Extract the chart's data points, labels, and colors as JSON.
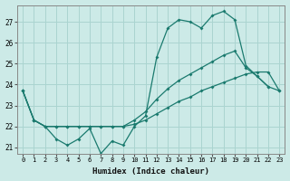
{
  "xlabel": "Humidex (Indice chaleur)",
  "background_color": "#cceae7",
  "grid_color": "#aad4d0",
  "line_color": "#1a7a6e",
  "x": [
    0,
    1,
    2,
    3,
    4,
    5,
    6,
    7,
    8,
    9,
    10,
    11,
    12,
    13,
    14,
    15,
    16,
    17,
    18,
    19,
    20,
    21,
    22,
    23
  ],
  "line1": [
    23.7,
    22.3,
    22.0,
    21.4,
    21.1,
    21.4,
    21.9,
    20.7,
    21.3,
    21.1,
    22.0,
    22.5,
    25.3,
    26.7,
    27.1,
    27.0,
    26.7,
    27.3,
    27.5,
    27.1,
    24.9,
    24.4,
    23.9,
    null
  ],
  "line2": [
    23.7,
    22.3,
    22.0,
    22.0,
    22.0,
    22.0,
    22.0,
    22.0,
    22.0,
    22.0,
    22.3,
    22.7,
    23.3,
    23.8,
    24.2,
    24.5,
    24.8,
    25.1,
    25.4,
    25.6,
    24.8,
    24.4,
    23.9,
    23.7
  ],
  "line3": [
    23.7,
    22.3,
    22.0,
    22.0,
    22.0,
    22.0,
    22.0,
    22.0,
    22.0,
    22.0,
    22.1,
    22.3,
    22.6,
    22.9,
    23.2,
    23.4,
    23.7,
    23.9,
    24.1,
    24.3,
    24.5,
    24.6,
    24.6,
    23.7
  ],
  "ylim": [
    20.7,
    27.8
  ],
  "yticks": [
    21,
    22,
    23,
    24,
    25,
    26,
    27
  ],
  "xticks": [
    0,
    1,
    2,
    3,
    4,
    5,
    6,
    7,
    8,
    9,
    10,
    11,
    12,
    13,
    14,
    15,
    16,
    17,
    18,
    19,
    20,
    21,
    22,
    23
  ]
}
